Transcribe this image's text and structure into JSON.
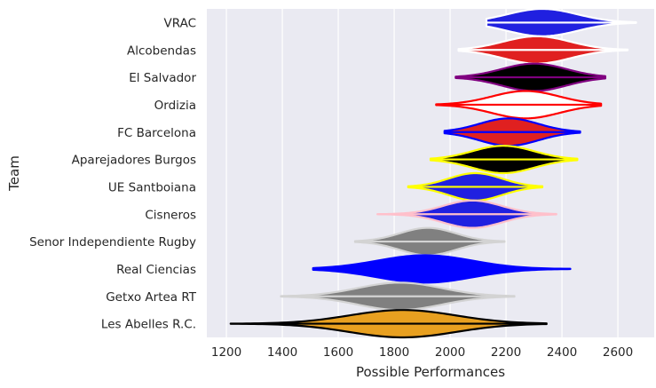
{
  "chart_data": {
    "type": "violin",
    "orientation": "horizontal",
    "xlabel": "Possible Performances",
    "ylabel": "Team",
    "xlim": [
      1130,
      2730
    ],
    "xticks": [
      1200,
      1400,
      1600,
      1800,
      2000,
      2200,
      2400,
      2600
    ],
    "grid": true,
    "background": "#eaeaf2",
    "series": [
      {
        "team": "VRAC",
        "fill": "#2020e0",
        "edge": "#ffffff",
        "min": 2130,
        "max": 2665,
        "median": 2330,
        "spread": 125
      },
      {
        "team": "Alcobendas",
        "fill": "#e02020",
        "edge": "#ffffff",
        "min": 2030,
        "max": 2635,
        "median": 2310,
        "spread": 120
      },
      {
        "team": "El Salvador",
        "fill": "#000000",
        "edge": "#800080",
        "min": 2020,
        "max": 2555,
        "median": 2300,
        "spread": 115
      },
      {
        "team": "Ordizia",
        "fill": "#ffffff",
        "edge": "#ff0000",
        "min": 1950,
        "max": 2540,
        "median": 2270,
        "spread": 120
      },
      {
        "team": "FC Barcelona",
        "fill": "#e02020",
        "edge": "#0000ff",
        "min": 1980,
        "max": 2465,
        "median": 2210,
        "spread": 105
      },
      {
        "team": "Aparejadores Burgos",
        "fill": "#000000",
        "edge": "#ffff00",
        "min": 1930,
        "max": 2455,
        "median": 2190,
        "spread": 110
      },
      {
        "team": "UE Santboiana",
        "fill": "#2020e0",
        "edge": "#ffff00",
        "min": 1850,
        "max": 2330,
        "median": 2090,
        "spread": 95
      },
      {
        "team": "Cisneros",
        "fill": "#2020e0",
        "edge": "#ffc0cb",
        "min": 1740,
        "max": 2380,
        "median": 2080,
        "spread": 105
      },
      {
        "team": "Senor Independiente Rugby",
        "fill": "#808080",
        "edge": "#d3d3d3",
        "min": 1660,
        "max": 2195,
        "median": 1920,
        "spread": 100
      },
      {
        "team": "Real Ciencias",
        "fill": "#0000ff",
        "edge": "#0000ff",
        "min": 1510,
        "max": 2430,
        "median": 1910,
        "spread": 170
      },
      {
        "team": "Getxo Artea RT",
        "fill": "#808080",
        "edge": "#d3d3d3",
        "min": 1395,
        "max": 2230,
        "median": 1820,
        "spread": 150
      },
      {
        "team": "Les Abelles R.C.",
        "fill": "#e8a020",
        "edge": "#000000",
        "min": 1215,
        "max": 2345,
        "median": 1830,
        "spread": 190
      }
    ]
  }
}
